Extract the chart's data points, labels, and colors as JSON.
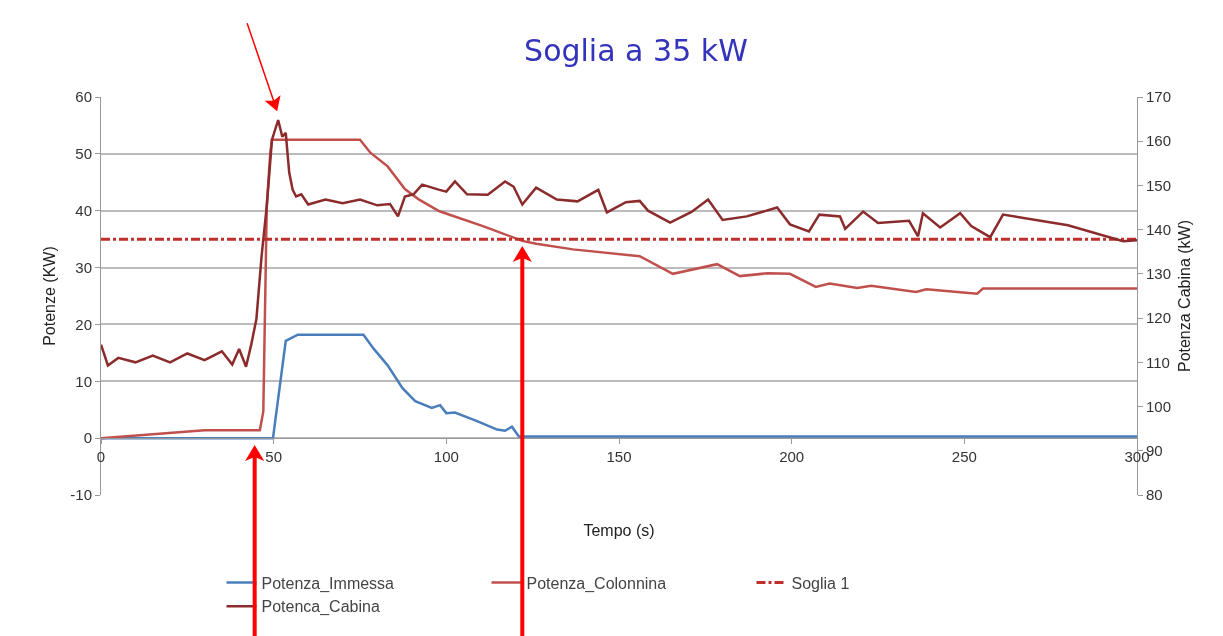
{
  "chart_data": {
    "type": "line",
    "title": "Soglia a 35 kW",
    "xlabel": "Tempo (s)",
    "ylabel": "Potenze (KW)",
    "y2label": "Potenza Cabina (kW)",
    "xlim": [
      0,
      300
    ],
    "xticks": [
      0,
      50,
      100,
      150,
      200,
      250,
      300
    ],
    "ylim": [
      -10,
      60
    ],
    "yticks": [
      -10,
      0,
      10,
      20,
      30,
      40,
      50,
      60
    ],
    "y2lim": [
      80,
      170
    ],
    "y2ticks": [
      80,
      90,
      100,
      110,
      120,
      130,
      140,
      150,
      160,
      170
    ],
    "grid": "y",
    "legend": "bottom",
    "marker": "none",
    "series": [
      {
        "name": "Potenza_Immessa",
        "color": "#4a7ebb",
        "x": [
          0,
          49.8,
          53.5,
          57,
          76,
          79,
          83,
          87.3,
          91,
          95.8,
          98.2,
          100,
          102.5,
          108.9,
          114.7,
          117,
          119,
          121,
          300
        ],
        "values": [
          0,
          0,
          17.1,
          18.2,
          18.2,
          15.7,
          12.8,
          8.8,
          6.5,
          5.3,
          5.8,
          4.4,
          4.5,
          3,
          1.5,
          1.3,
          2,
          0.3,
          0.3
        ]
      },
      {
        "name": "Potenza_Colonnina",
        "color": "#c0504d",
        "x": [
          0,
          30,
          46,
          47,
          48,
          49,
          49.5,
          75,
          78,
          83,
          88,
          92,
          98,
          110.6,
          122,
          126,
          136.7,
          156,
          165.6,
          178.4,
          185,
          193,
          199.5,
          207,
          211,
          219,
          223,
          236,
          239,
          248,
          253.7,
          255.4,
          300
        ],
        "values": [
          0,
          1.4,
          1.4,
          4.7,
          40.8,
          50,
          52.5,
          52.5,
          50.2,
          47.8,
          43.8,
          42,
          39.9,
          37.3,
          34.7,
          34.2,
          33.2,
          32,
          28.9,
          30.6,
          28.5,
          29,
          28.9,
          26.6,
          27.2,
          26.4,
          26.8,
          25.7,
          26.2,
          25.7,
          25.4,
          26.3,
          26.3
        ]
      },
      {
        "name": "Potenca_Cabina",
        "color": "#8b2b2b",
        "axis": "y2",
        "x": [
          0,
          2,
          5,
          10,
          15,
          20,
          25,
          30,
          35,
          38,
          40,
          42,
          43.5,
          45,
          46.5,
          48,
          49.5,
          51.3,
          52.5,
          53.5,
          54.5,
          55.5,
          56.5,
          58,
          60,
          65,
          70,
          75,
          80,
          83.7,
          86,
          88,
          90.5,
          93,
          98,
          100,
          102.5,
          106,
          112,
          117,
          119.5,
          122,
          126,
          132,
          138,
          144,
          146.5,
          152,
          156,
          158.4,
          164.8,
          171,
          175.8,
          180,
          187,
          195.8,
          199.5,
          205,
          208,
          214,
          215.5,
          220.7,
          225,
          234,
          236.6,
          238,
          243,
          248.8,
          252,
          257.5,
          261.2,
          280,
          296,
          300
        ],
        "values": [
          114,
          109.3,
          111,
          110,
          111.5,
          110,
          112,
          110.5,
          112.5,
          109.5,
          113,
          109,
          114,
          119.8,
          134,
          145.3,
          160.3,
          164.8,
          161,
          161.9,
          152.9,
          149,
          147.5,
          148,
          145.7,
          146.8,
          146,
          146.8,
          145.5,
          145.8,
          143,
          147.5,
          148,
          150.2,
          149,
          148.6,
          150.9,
          148,
          147.9,
          150.9,
          149.7,
          145.7,
          149.5,
          146.8,
          146.4,
          149,
          143.9,
          146.2,
          146.5,
          144.3,
          141.6,
          144,
          146.8,
          142.2,
          143,
          145,
          141.2,
          139.6,
          143.4,
          143,
          140.2,
          144.1,
          141.5,
          142,
          138.5,
          143.7,
          140.5,
          143.7,
          140.8,
          138.3,
          143.4,
          141,
          137.4,
          137.6
        ]
      }
    ],
    "ref_lines": [
      {
        "axis": "y",
        "value": 35,
        "label": "Soglia 1",
        "color": "#c0302b",
        "line_style": "dashed"
      }
    ]
  }
}
